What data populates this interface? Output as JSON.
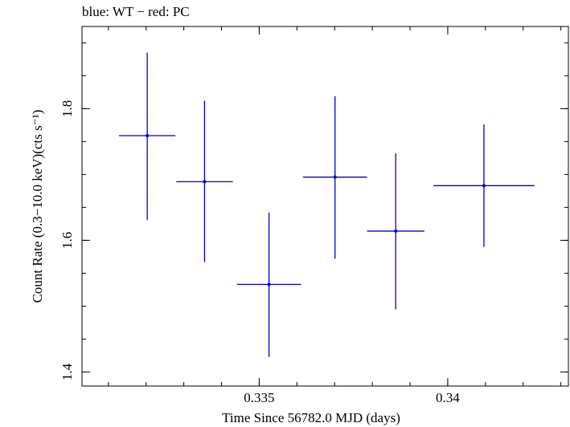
{
  "chart_data": {
    "type": "scatter",
    "title": "blue: WT − red: PC",
    "xlabel": "Time Since 56782.0 MJD (days)",
    "ylabel": "Count Rate (0.3−10.0 keV)(cts s⁻¹)",
    "xlim": [
      0.3303,
      0.3432
    ],
    "ylim": [
      1.3786,
      1.9248
    ],
    "x_ticks": [
      0.335,
      0.34
    ],
    "x_tick_labels": [
      "0.335",
      "0.34"
    ],
    "x_minor_step": 0.001,
    "y_ticks": [
      1.4,
      1.6,
      1.8
    ],
    "y_tick_labels": [
      "1.4",
      "1.6",
      "1.8"
    ],
    "y_minor_step": 0.05,
    "grid": false,
    "series": [
      {
        "name": "WT",
        "color": "#0000cc",
        "points": [
          {
            "x": 0.33203,
            "y": 1.759,
            "xerr": 0.00075,
            "yerr_up": 0.126,
            "yerr_down": 0.128
          },
          {
            "x": 0.33355,
            "y": 1.689,
            "xerr": 0.00075,
            "yerr_up": 0.123,
            "yerr_down": 0.122
          },
          {
            "x": 0.33526,
            "y": 1.533,
            "xerr": 0.00085,
            "yerr_up": 0.109,
            "yerr_down": 0.11
          },
          {
            "x": 0.33701,
            "y": 1.696,
            "xerr": 0.00085,
            "yerr_up": 0.123,
            "yerr_down": 0.124
          },
          {
            "x": 0.33862,
            "y": 1.614,
            "xerr": 0.00076,
            "yerr_up": 0.118,
            "yerr_down": 0.119
          },
          {
            "x": 0.34096,
            "y": 1.683,
            "xerr": 0.00134,
            "yerr_up": 0.093,
            "yerr_down": 0.093
          }
        ]
      }
    ]
  }
}
